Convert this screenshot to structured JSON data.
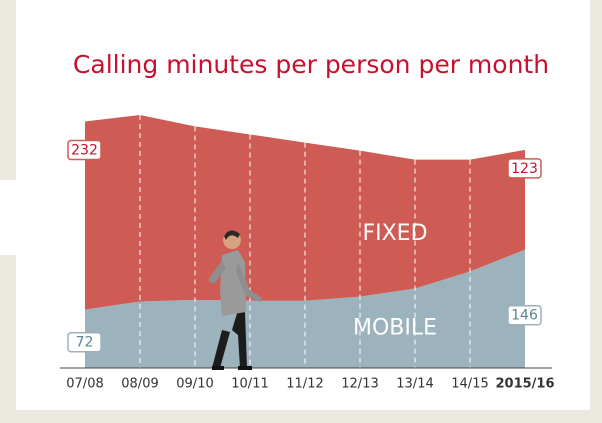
{
  "chart_data": {
    "type": "stacked-area",
    "title": "Calling minutes per person per month",
    "categories": [
      "07/08",
      "08/09",
      "09/10",
      "10/11",
      "11/12",
      "12/13",
      "13/14",
      "14/15",
      "2015/16"
    ],
    "series": [
      {
        "name": "MOBILE",
        "color": "#9cb2bc",
        "values": [
          72,
          82,
          84,
          83,
          83,
          88,
          98,
          119,
          146
        ]
      },
      {
        "name": "FIXED",
        "color": "#cf5b55",
        "values": [
          232,
          230,
          214,
          205,
          195,
          180,
          159,
          138,
          123
        ]
      }
    ]
  }
}
